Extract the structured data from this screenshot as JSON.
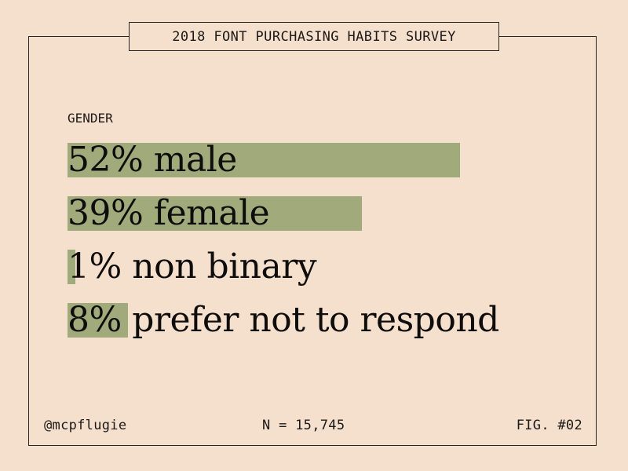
{
  "title": "2018 FONT PURCHASING HABITS SURVEY",
  "subtitle": "GENDER",
  "chart_data": {
    "type": "bar",
    "orientation": "horizontal",
    "title": "2018 FONT PURCHASING HABITS SURVEY",
    "subtitle": "GENDER",
    "categories": [
      "male",
      "female",
      "non binary",
      "prefer not to respond"
    ],
    "values": [
      52,
      39,
      1,
      8
    ],
    "unit": "%",
    "labels": [
      "52% male",
      "39% female",
      "1% non binary",
      "8% prefer not to respond"
    ],
    "xlim": [
      0,
      52
    ],
    "grid": false,
    "bar_color": "#a0aa7b",
    "background_color": "#f5dfcd"
  },
  "footer": {
    "handle": "@mcpflugie",
    "sample_size": "N = 15,745",
    "figure": "FIG. #02"
  }
}
